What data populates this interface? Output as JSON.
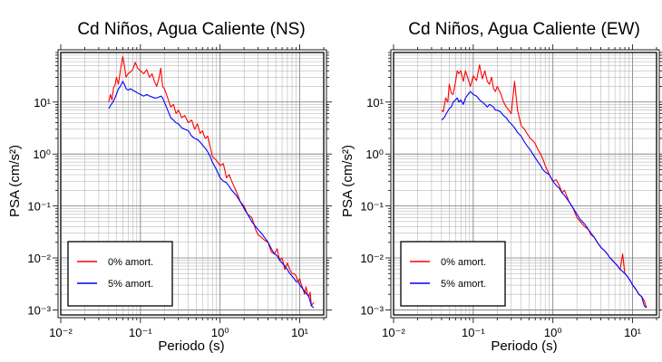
{
  "chart_data": [
    {
      "type": "line",
      "title": "Cd Niños, Agua Caliente (NS)",
      "xlabel": "Periodo (s)",
      "ylabel": "PSA (cm/s²)",
      "x_scale": "log",
      "y_scale": "log",
      "xlim": [
        0.01,
        20
      ],
      "ylim": [
        0.0008,
        90
      ],
      "grid": true,
      "legend_position": "bottom-left",
      "x_ticks": [
        {
          "value": 0.01,
          "label": "10⁻²"
        },
        {
          "value": 0.1,
          "label": "10⁻¹"
        },
        {
          "value": 1,
          "label": "10⁰"
        },
        {
          "value": 10,
          "label": "10¹"
        }
      ],
      "y_ticks": [
        {
          "value": 0.001,
          "label": "10⁻³"
        },
        {
          "value": 0.01,
          "label": "10⁻²"
        },
        {
          "value": 0.1,
          "label": "10⁻¹"
        },
        {
          "value": 1,
          "label": "10⁰"
        },
        {
          "value": 10,
          "label": "10¹"
        }
      ],
      "series": [
        {
          "name": "0% amort.",
          "color": "#ff0000",
          "x": [
            0.04,
            0.042,
            0.044,
            0.046,
            0.048,
            0.05,
            0.053,
            0.056,
            0.06,
            0.063,
            0.066,
            0.07,
            0.075,
            0.08,
            0.086,
            0.092,
            0.1,
            0.11,
            0.12,
            0.13,
            0.14,
            0.15,
            0.16,
            0.17,
            0.18,
            0.19,
            0.2,
            0.22,
            0.24,
            0.26,
            0.28,
            0.3,
            0.33,
            0.36,
            0.4,
            0.44,
            0.48,
            0.52,
            0.56,
            0.6,
            0.65,
            0.7,
            0.75,
            0.8,
            0.9,
            1.0,
            1.1,
            1.2,
            1.3,
            1.4,
            1.6,
            1.8,
            2.0,
            2.2,
            2.5,
            2.8,
            3.0,
            3.3,
            3.6,
            4.0,
            4.4,
            4.8,
            5.2,
            5.6,
            6.0,
            6.5,
            7.0,
            7.5,
            8.0,
            8.5,
            9.0,
            9.5,
            10,
            10.5,
            11,
            11.5,
            12,
            12.5,
            13,
            13.5,
            14,
            15
          ],
          "y": [
            10,
            14,
            11,
            19,
            21,
            30,
            22,
            40,
            75,
            50,
            30,
            35,
            38,
            42,
            58,
            45,
            40,
            35,
            42,
            30,
            35,
            25,
            20,
            28,
            45,
            20,
            18,
            12,
            8,
            9,
            6,
            7,
            5,
            5.5,
            4,
            4.5,
            3,
            3.8,
            2.5,
            2.8,
            2,
            2.2,
            1.4,
            0.9,
            0.75,
            0.6,
            0.65,
            0.35,
            0.4,
            0.3,
            0.19,
            0.12,
            0.1,
            0.07,
            0.06,
            0.035,
            0.028,
            0.025,
            0.022,
            0.02,
            0.013,
            0.012,
            0.015,
            0.009,
            0.01,
            0.006,
            0.008,
            0.006,
            0.005,
            0.005,
            0.0045,
            0.0035,
            0.004,
            0.003,
            0.0025,
            0.002,
            0.0028,
            0.002,
            0.0018,
            0.0022,
            0.0012,
            0.0014
          ]
        },
        {
          "name": "5% amort.",
          "color": "#0000ff",
          "x": [
            0.04,
            0.043,
            0.046,
            0.05,
            0.053,
            0.056,
            0.06,
            0.063,
            0.066,
            0.07,
            0.075,
            0.08,
            0.086,
            0.092,
            0.1,
            0.11,
            0.12,
            0.13,
            0.14,
            0.15,
            0.16,
            0.17,
            0.18,
            0.19,
            0.2,
            0.22,
            0.24,
            0.26,
            0.28,
            0.3,
            0.33,
            0.36,
            0.4,
            0.44,
            0.48,
            0.52,
            0.56,
            0.6,
            0.65,
            0.7,
            0.75,
            0.8,
            0.9,
            1.0,
            1.1,
            1.2,
            1.3,
            1.4,
            1.6,
            1.8,
            2.0,
            2.2,
            2.5,
            2.8,
            3.0,
            3.3,
            3.6,
            4.0,
            4.4,
            4.8,
            5.2,
            5.6,
            6.0,
            6.5,
            7.0,
            7.5,
            8.0,
            8.5,
            9.0,
            9.5,
            10,
            11,
            12,
            13,
            14,
            15
          ],
          "y": [
            7.5,
            9,
            10.5,
            14,
            18,
            20,
            25,
            22,
            18,
            17,
            18,
            17,
            16,
            15,
            14,
            13,
            14,
            13,
            12.5,
            12,
            12,
            12.5,
            13,
            12,
            10,
            7,
            5,
            4.5,
            4,
            3.8,
            3.2,
            3,
            2.8,
            2.2,
            2,
            1.9,
            1.7,
            1.5,
            1.3,
            1.1,
            0.9,
            0.7,
            0.5,
            0.35,
            0.3,
            0.28,
            0.24,
            0.2,
            0.16,
            0.12,
            0.09,
            0.07,
            0.05,
            0.04,
            0.035,
            0.03,
            0.025,
            0.02,
            0.015,
            0.012,
            0.011,
            0.009,
            0.008,
            0.007,
            0.006,
            0.005,
            0.0045,
            0.004,
            0.0035,
            0.0035,
            0.003,
            0.0025,
            0.0021,
            0.0018,
            0.0012,
            0.0011
          ]
        }
      ]
    },
    {
      "type": "line",
      "title": "Cd Niños, Agua Caliente (EW)",
      "xlabel": "Periodo (s)",
      "ylabel": "PSA (cm/s²)",
      "x_scale": "log",
      "y_scale": "log",
      "xlim": [
        0.01,
        20
      ],
      "ylim": [
        0.0008,
        90
      ],
      "grid": true,
      "legend_position": "bottom-left",
      "x_ticks": [
        {
          "value": 0.01,
          "label": "10⁻²"
        },
        {
          "value": 0.1,
          "label": "10⁻¹"
        },
        {
          "value": 1,
          "label": "10⁰"
        },
        {
          "value": 10,
          "label": "10¹"
        }
      ],
      "y_ticks": [
        {
          "value": 0.001,
          "label": "10⁻³"
        },
        {
          "value": 0.01,
          "label": "10⁻²"
        },
        {
          "value": 0.1,
          "label": "10⁻¹"
        },
        {
          "value": 1,
          "label": "10⁰"
        },
        {
          "value": 10,
          "label": "10¹"
        }
      ],
      "series": [
        {
          "name": "0% amort.",
          "color": "#ff0000",
          "x": [
            0.04,
            0.042,
            0.045,
            0.048,
            0.05,
            0.053,
            0.056,
            0.06,
            0.063,
            0.066,
            0.07,
            0.075,
            0.08,
            0.086,
            0.092,
            0.1,
            0.11,
            0.12,
            0.13,
            0.14,
            0.15,
            0.16,
            0.17,
            0.18,
            0.19,
            0.2,
            0.22,
            0.24,
            0.26,
            0.28,
            0.3,
            0.33,
            0.36,
            0.4,
            0.44,
            0.48,
            0.52,
            0.56,
            0.6,
            0.65,
            0.7,
            0.75,
            0.8,
            0.9,
            1.0,
            1.1,
            1.2,
            1.3,
            1.4,
            1.6,
            1.8,
            2.0,
            2.2,
            2.5,
            2.8,
            3.0,
            3.3,
            3.6,
            4.0,
            4.4,
            4.8,
            5.2,
            5.6,
            6.0,
            6.5,
            7.0,
            7.5,
            8.0,
            8.5,
            9.0,
            9.5,
            10,
            11,
            12,
            13,
            14,
            15
          ],
          "y": [
            7,
            6.5,
            12,
            10,
            22,
            15,
            14,
            25,
            40,
            35,
            40,
            25,
            40,
            28,
            20,
            32,
            26,
            52,
            28,
            40,
            25,
            22,
            30,
            18,
            16,
            20,
            15,
            10,
            8,
            7,
            6,
            25,
            7,
            3.5,
            3,
            2.4,
            2,
            1.8,
            1.6,
            1.2,
            1.0,
            0.8,
            0.6,
            0.4,
            0.3,
            0.32,
            0.25,
            0.18,
            0.2,
            0.12,
            0.09,
            0.06,
            0.05,
            0.04,
            0.035,
            0.028,
            0.025,
            0.02,
            0.016,
            0.014,
            0.012,
            0.01,
            0.009,
            0.008,
            0.007,
            0.006,
            0.012,
            0.005,
            0.0045,
            0.004,
            0.0035,
            0.003,
            0.0025,
            0.002,
            0.0018,
            0.0015,
            0.0011
          ]
        },
        {
          "name": "5% amort.",
          "color": "#0000ff",
          "x": [
            0.04,
            0.043,
            0.046,
            0.05,
            0.053,
            0.056,
            0.06,
            0.063,
            0.066,
            0.07,
            0.075,
            0.08,
            0.086,
            0.092,
            0.1,
            0.11,
            0.12,
            0.13,
            0.14,
            0.15,
            0.16,
            0.17,
            0.18,
            0.19,
            0.2,
            0.22,
            0.24,
            0.26,
            0.28,
            0.3,
            0.33,
            0.36,
            0.4,
            0.44,
            0.48,
            0.52,
            0.56,
            0.6,
            0.65,
            0.7,
            0.75,
            0.8,
            0.9,
            1.0,
            1.1,
            1.2,
            1.3,
            1.4,
            1.6,
            1.8,
            2.0,
            2.2,
            2.5,
            2.8,
            3.0,
            3.3,
            3.6,
            4.0,
            4.4,
            4.8,
            5.2,
            5.6,
            6.0,
            6.5,
            7.0,
            7.5,
            8.0,
            8.5,
            9.0,
            9.5,
            10,
            11,
            12,
            13,
            14,
            15
          ],
          "y": [
            4.5,
            5,
            6,
            7.5,
            8,
            10,
            11,
            12,
            10,
            11,
            9,
            12,
            14,
            16,
            14,
            13,
            11,
            10,
            9,
            8,
            9,
            8.5,
            8,
            7,
            7,
            6.5,
            5.5,
            5,
            4.2,
            3.8,
            3.2,
            2.6,
            2.2,
            1.7,
            1.4,
            1.2,
            1.0,
            0.85,
            0.7,
            0.6,
            0.5,
            0.45,
            0.4,
            0.3,
            0.25,
            0.22,
            0.18,
            0.16,
            0.12,
            0.09,
            0.07,
            0.055,
            0.045,
            0.035,
            0.03,
            0.025,
            0.02,
            0.016,
            0.014,
            0.012,
            0.01,
            0.009,
            0.008,
            0.007,
            0.006,
            0.0055,
            0.005,
            0.0045,
            0.004,
            0.0035,
            0.003,
            0.0025,
            0.002,
            0.0018,
            0.0012,
            0.0011
          ]
        }
      ]
    }
  ]
}
